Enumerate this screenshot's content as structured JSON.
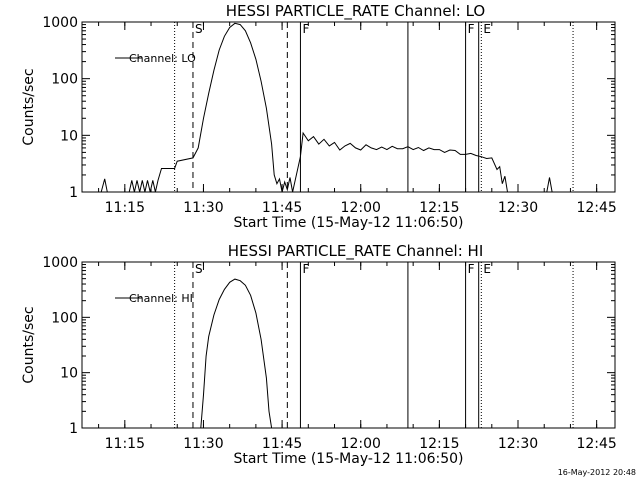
{
  "chart_data": [
    {
      "type": "line",
      "title": "HESSI PARTICLE_RATE Channel: LO",
      "ylabel": "Counts/sec",
      "xlabel": "Start Time (15-May-12 11:06:50)",
      "yscale": "log",
      "ylim": [
        1,
        1000
      ],
      "yticks": [
        1,
        10,
        100,
        1000
      ],
      "ytick_labels": [
        "1",
        "10",
        "100",
        "1000"
      ],
      "xlim": [
        "11:06:50",
        "12:48:30"
      ],
      "xticks": [
        "11:15",
        "11:30",
        "11:45",
        "12:00",
        "12:15",
        "12:30",
        "12:45"
      ],
      "legend": {
        "position": "top-left",
        "label": "Channel: LO"
      },
      "series": [
        {
          "name": "Channel: LO",
          "points": [
            [
              "11:10:30",
              1
            ],
            [
              "11:11:10",
              1.7
            ],
            [
              "11:11:40",
              1
            ],
            [
              "11:15:50",
              1
            ],
            [
              "11:16:20",
              1.6
            ],
            [
              "11:16:50",
              1
            ],
            [
              "11:17:20",
              1.6
            ],
            [
              "11:17:50",
              1
            ],
            [
              "11:18:20",
              1.6
            ],
            [
              "11:18:50",
              1
            ],
            [
              "11:19:20",
              1.6
            ],
            [
              "11:19:50",
              1
            ],
            [
              "11:20:20",
              1.6
            ],
            [
              "11:20:50",
              1
            ],
            [
              "11:21:20",
              1.6
            ],
            [
              "11:21:50",
              2.3
            ],
            [
              "11:22:00",
              2.6
            ],
            [
              "11:24:30",
              2.6
            ],
            [
              "11:25:00",
              3.5
            ],
            [
              "11:28:00",
              4
            ],
            [
              "11:29:00",
              6
            ],
            [
              "11:30:00",
              20
            ],
            [
              "11:31:00",
              55
            ],
            [
              "11:32:00",
              140
            ],
            [
              "11:33:00",
              320
            ],
            [
              "11:34:00",
              560
            ],
            [
              "11:35:00",
              800
            ],
            [
              "11:36:00",
              950
            ],
            [
              "11:37:00",
              900
            ],
            [
              "11:38:00",
              700
            ],
            [
              "11:39:00",
              430
            ],
            [
              "11:40:00",
              220
            ],
            [
              "11:41:00",
              90
            ],
            [
              "11:42:00",
              30
            ],
            [
              "11:43:00",
              7
            ],
            [
              "11:43:30",
              2
            ],
            [
              "11:44:00",
              1.4
            ],
            [
              "11:44:30",
              1.7
            ],
            [
              "11:45:00",
              1
            ],
            [
              "11:45:30",
              1.5
            ],
            [
              "11:46:00",
              1.1
            ],
            [
              "11:46:30",
              1.8
            ],
            [
              "11:47:00",
              1
            ],
            [
              "11:48:30",
              4.2
            ],
            [
              "11:49:00",
              11
            ],
            [
              "11:50:00",
              8
            ],
            [
              "11:51:00",
              9.5
            ],
            [
              "11:52:00",
              7
            ],
            [
              "11:53:00",
              8.5
            ],
            [
              "11:54:00",
              6.5
            ],
            [
              "11:55:00",
              7.5
            ],
            [
              "11:56:00",
              5.5
            ],
            [
              "11:57:00",
              6.5
            ],
            [
              "11:58:00",
              7.2
            ],
            [
              "11:59:00",
              6
            ],
            [
              "12:00:00",
              5.5
            ],
            [
              "12:01:00",
              6.8
            ],
            [
              "12:02:00",
              6
            ],
            [
              "12:03:00",
              5.6
            ],
            [
              "12:04:00",
              6.2
            ],
            [
              "12:05:00",
              5.6
            ],
            [
              "12:06:00",
              6.4
            ],
            [
              "12:07:00",
              5.8
            ],
            [
              "12:08:00",
              5.8
            ],
            [
              "12:09:00",
              6.3
            ],
            [
              "12:10:00",
              5.6
            ],
            [
              "12:11:00",
              6.1
            ],
            [
              "12:12:00",
              5.4
            ],
            [
              "12:13:00",
              6
            ],
            [
              "12:14:00",
              5.6
            ],
            [
              "12:15:00",
              5.6
            ],
            [
              "12:16:00",
              5
            ],
            [
              "12:17:00",
              5.5
            ],
            [
              "12:18:00",
              5.4
            ],
            [
              "12:19:00",
              4.6
            ],
            [
              "12:20:00",
              4.6
            ],
            [
              "12:21:00",
              4.8
            ],
            [
              "12:22:00",
              4.4
            ],
            [
              "12:23:00",
              4.2
            ],
            [
              "12:24:00",
              3.9
            ],
            [
              "12:25:00",
              4
            ],
            [
              "12:26:00",
              2.5
            ],
            [
              "12:26:30",
              2.8
            ],
            [
              "12:27:00",
              1.4
            ],
            [
              "12:27:30",
              1.9
            ],
            [
              "12:28:00",
              1
            ],
            [
              "12:35:30",
              1
            ],
            [
              "12:36:00",
              1.8
            ],
            [
              "12:36:30",
              1
            ]
          ]
        }
      ],
      "markers": [
        {
          "time": "11:24:30",
          "style": "dotted",
          "label": ""
        },
        {
          "time": "11:28:00",
          "style": "dashed",
          "label": "S"
        },
        {
          "time": "11:46:00",
          "style": "dashed",
          "label": ""
        },
        {
          "time": "11:48:30",
          "style": "solid",
          "label": "F"
        },
        {
          "time": "12:09:00",
          "style": "solid",
          "label": ""
        },
        {
          "time": "12:20:00",
          "style": "solid",
          "label": "F"
        },
        {
          "time": "12:22:30",
          "style": "solid",
          "label": ""
        },
        {
          "time": "12:23:00",
          "style": "dotted",
          "label": "E"
        },
        {
          "time": "12:40:30",
          "style": "dotted",
          "label": ""
        }
      ]
    },
    {
      "type": "line",
      "title": "HESSI PARTICLE_RATE Channel: HI",
      "ylabel": "Counts/sec",
      "xlabel": "Start Time (15-May-12 11:06:50)",
      "yscale": "log",
      "ylim": [
        1,
        1000
      ],
      "yticks": [
        1,
        10,
        100,
        1000
      ],
      "ytick_labels": [
        "1",
        "10",
        "100",
        "1000"
      ],
      "xlim": [
        "11:06:50",
        "12:48:30"
      ],
      "xticks": [
        "11:15",
        "11:30",
        "11:45",
        "12:00",
        "12:15",
        "12:30",
        "12:45"
      ],
      "legend": {
        "position": "top-left",
        "label": "Channel: HI"
      },
      "series": [
        {
          "name": "Channel: HI",
          "points": [
            [
              "11:29:30",
              1
            ],
            [
              "11:30:00",
              4
            ],
            [
              "11:30:30",
              20
            ],
            [
              "11:31:00",
              45
            ],
            [
              "11:32:00",
              110
            ],
            [
              "11:33:00",
              210
            ],
            [
              "11:34:00",
              320
            ],
            [
              "11:35:00",
              430
            ],
            [
              "11:36:00",
              490
            ],
            [
              "11:37:00",
              460
            ],
            [
              "11:38:00",
              380
            ],
            [
              "11:39:00",
              250
            ],
            [
              "11:40:00",
              120
            ],
            [
              "11:41:00",
              40
            ],
            [
              "11:42:00",
              8
            ],
            [
              "11:42:30",
              2
            ],
            [
              "11:43:00",
              1
            ]
          ]
        }
      ],
      "markers": [
        {
          "time": "11:24:30",
          "style": "dotted",
          "label": ""
        },
        {
          "time": "11:28:00",
          "style": "dashed",
          "label": "S"
        },
        {
          "time": "11:46:00",
          "style": "dashed",
          "label": ""
        },
        {
          "time": "11:48:30",
          "style": "solid",
          "label": "F"
        },
        {
          "time": "12:09:00",
          "style": "solid",
          "label": ""
        },
        {
          "time": "12:20:00",
          "style": "solid",
          "label": "F"
        },
        {
          "time": "12:22:30",
          "style": "solid",
          "label": ""
        },
        {
          "time": "12:23:00",
          "style": "dotted",
          "label": "E"
        },
        {
          "time": "12:40:30",
          "style": "dotted",
          "label": ""
        }
      ]
    }
  ],
  "footer": {
    "timestamp": "16-May-2012 20:48"
  },
  "colors": {
    "line": "#000000",
    "background": "#ffffff"
  }
}
